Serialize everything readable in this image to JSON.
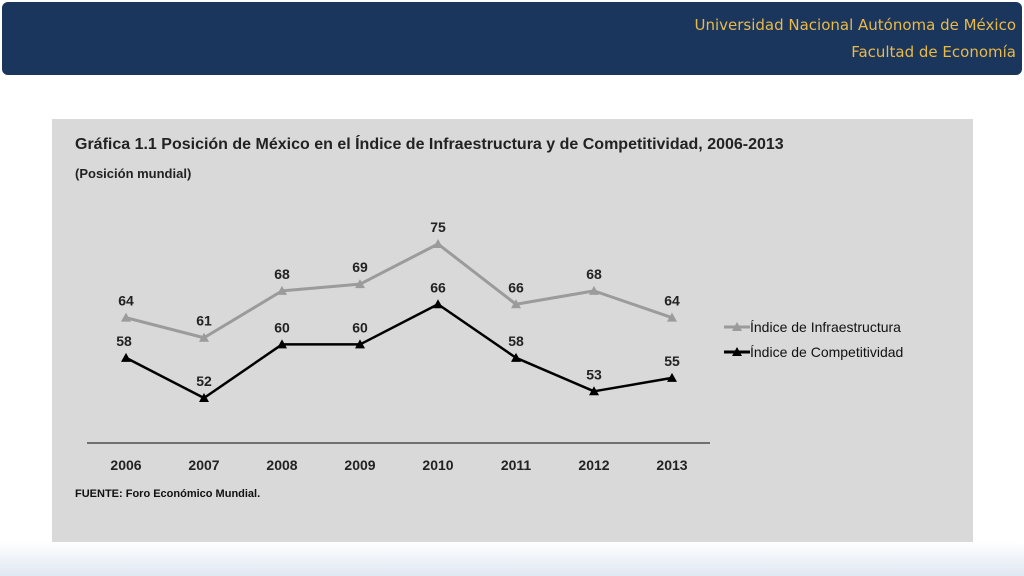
{
  "header": {
    "line1": "Universidad Nacional Autónoma de México",
    "line2": "Facultad de Economía",
    "background": "#1a365d",
    "text_color": "#e9b949"
  },
  "chart_data": {
    "type": "line",
    "title": "Gráfica 1.1 Posición de México en el Índice de Infraestructura y de Competitividad, 2006-2013",
    "subtitle": "(Posición mundial)",
    "source": "FUENTE: Foro Económico Mundial.",
    "xlabel": "",
    "ylabel": "",
    "categories": [
      "2006",
      "2007",
      "2008",
      "2009",
      "2010",
      "2011",
      "2012",
      "2013"
    ],
    "series": [
      {
        "name": "Índice de Infraestructura",
        "values": [
          64,
          61,
          68,
          69,
          75,
          66,
          68,
          64
        ],
        "color": "#9b9b9b",
        "marker": "triangle"
      },
      {
        "name": "Índice de Competitividad",
        "values": [
          58,
          52,
          60,
          60,
          66,
          58,
          53,
          55
        ],
        "color": "#000000",
        "marker": "triangle"
      }
    ],
    "ylim": [
      45,
      80
    ],
    "grid": false,
    "data_labels": true,
    "legend_position": "right",
    "background": "#d9d9d9"
  }
}
